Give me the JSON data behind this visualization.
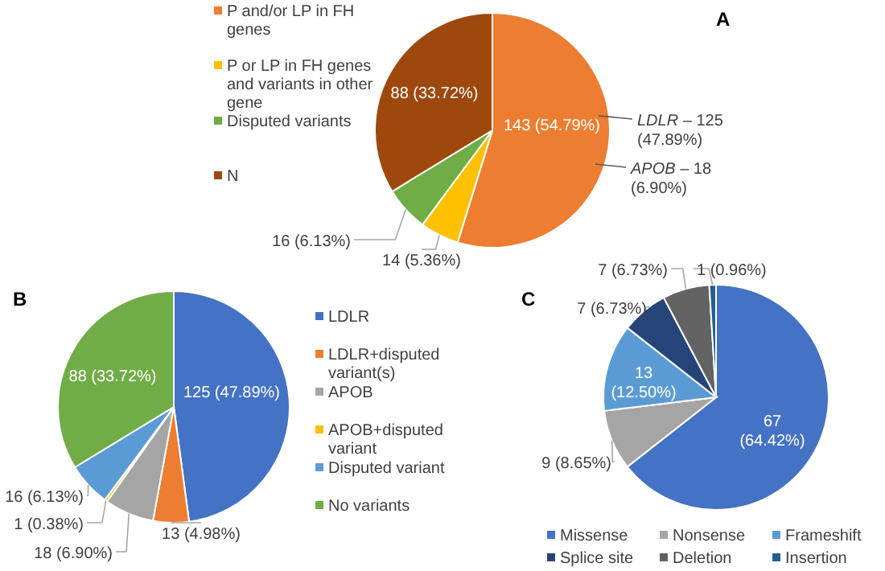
{
  "chart_data": [
    {
      "type": "pie",
      "title": "A",
      "categories": [
        "P and/or LP in FH genes",
        "P or LP in FH genes and variants in other gene",
        "Disputed variants",
        "N"
      ],
      "values": [
        143,
        14,
        16,
        88
      ],
      "colors": [
        "#ed7d31",
        "#ffc000",
        "#70ad47",
        "#9e480e"
      ],
      "value_labels": [
        "143 (54.79%)",
        "14 (5.36%)",
        "16 (6.13%)",
        "88 (33.72%)"
      ],
      "annotations": [
        "LDLR – 125 (47.89%)",
        "APOB – 18 (6.90%)"
      ],
      "legend": "left"
    },
    {
      "type": "pie",
      "title": "B",
      "categories": [
        "LDLR",
        "LDLR+disputed variant(s)",
        "APOB",
        "APOB+disputed variant",
        "Disputed variant",
        "No variants"
      ],
      "values": [
        125,
        13,
        18,
        1,
        16,
        88
      ],
      "colors": [
        "#4472c4",
        "#ed7d31",
        "#a5a5a5",
        "#ffc000",
        "#5b9bd5",
        "#70ad47"
      ],
      "value_labels": [
        "125 (47.89%)",
        "13 (4.98%)",
        "18 (6.90%)",
        "1 (0.38%)",
        "16 (6.13%)",
        "88 (33.72%)"
      ],
      "legend": "right"
    },
    {
      "type": "pie",
      "title": "C",
      "categories": [
        "Missense",
        "Nonsense",
        "Frameshift",
        "Splice site",
        "Deletion",
        "Insertion"
      ],
      "values": [
        67,
        9,
        13,
        7,
        7,
        1
      ],
      "colors": [
        "#4472c4",
        "#a5a5a5",
        "#5b9bd5",
        "#264478",
        "#636363",
        "#255e91"
      ],
      "value_labels": [
        "67 (64.42%)",
        "9 (8.65%)",
        "13 (12.50%)",
        "7 (6.73%)",
        "7 (6.73%)",
        "1 (0.96%)"
      ],
      "legend": "bottom"
    }
  ]
}
